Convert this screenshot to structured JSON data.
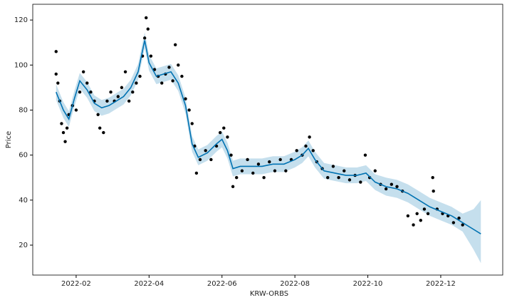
{
  "chart_data": {
    "type": "forecast",
    "xlabel": "KRW-ORBS",
    "ylabel": "Price",
    "grid": true,
    "xlim": [
      0.81,
      13.7
    ],
    "xticks": [
      {
        "value": 2,
        "label": "2022-02"
      },
      {
        "value": 4,
        "label": "2022-04"
      },
      {
        "value": 6,
        "label": "2022-06"
      },
      {
        "value": 8,
        "label": "2022-08"
      },
      {
        "value": 10,
        "label": "2022-10"
      },
      {
        "value": 12,
        "label": "2022-12"
      }
    ],
    "ylim": [
      6.7,
      127
    ],
    "yticks": [
      20,
      40,
      60,
      80,
      100,
      120
    ],
    "observations": {
      "color": "#000000",
      "x": [
        1.45,
        1.45,
        1.5,
        1.55,
        1.6,
        1.65,
        1.7,
        1.75,
        1.8,
        1.9,
        2.0,
        2.1,
        2.2,
        2.3,
        2.4,
        2.5,
        2.6,
        2.65,
        2.75,
        2.85,
        2.95,
        3.05,
        3.15,
        3.25,
        3.35,
        3.45,
        3.55,
        3.65,
        3.75,
        3.82,
        3.88,
        3.92,
        3.97,
        4.05,
        4.15,
        4.25,
        4.35,
        4.45,
        4.55,
        4.65,
        4.72,
        4.8,
        4.9,
        5.0,
        5.1,
        5.18,
        5.25,
        5.3,
        5.4,
        5.55,
        5.7,
        5.85,
        5.95,
        6.05,
        6.15,
        6.25,
        6.3,
        6.4,
        6.55,
        6.7,
        6.85,
        7.0,
        7.15,
        7.3,
        7.45,
        7.6,
        7.75,
        7.9,
        8.05,
        8.2,
        8.3,
        8.4,
        8.5,
        8.6,
        8.75,
        8.9,
        9.05,
        9.2,
        9.35,
        9.5,
        9.65,
        9.8,
        9.93,
        10.05,
        10.2,
        10.35,
        10.5,
        10.65,
        10.8,
        10.95,
        11.1,
        11.25,
        11.35,
        11.45,
        11.55,
        11.65,
        11.78,
        11.8,
        11.9,
        12.05,
        12.2,
        12.35,
        12.5,
        12.6
      ],
      "y": [
        106,
        96,
        92,
        84,
        74,
        70,
        66,
        72,
        78,
        82,
        80,
        88,
        97,
        92,
        88,
        84,
        78,
        72,
        70,
        84,
        88,
        84,
        86,
        90,
        97,
        84,
        88,
        92,
        95,
        104,
        112,
        121,
        116,
        104,
        98,
        95,
        92,
        96,
        99,
        93,
        109,
        100,
        95,
        85,
        80,
        74,
        64,
        52,
        58,
        62,
        58,
        64,
        70,
        72,
        68,
        60,
        46,
        50,
        53,
        58,
        52,
        56,
        50,
        57,
        53,
        58,
        53,
        58,
        62,
        60,
        64,
        68,
        62,
        57,
        54,
        50,
        55,
        50,
        53,
        49,
        51,
        48,
        60,
        50,
        53,
        47,
        45,
        47,
        46,
        44,
        33,
        29,
        34,
        31,
        36,
        34,
        50,
        44,
        36,
        34,
        33,
        30,
        32,
        29
      ]
    },
    "forecast": {
      "color": "#0072b2",
      "band_color": "#9ecae1",
      "x": [
        1.45,
        1.65,
        1.8,
        1.95,
        2.1,
        2.3,
        2.5,
        2.7,
        2.9,
        3.1,
        3.3,
        3.5,
        3.7,
        3.88,
        4.0,
        4.2,
        4.4,
        4.6,
        4.8,
        5.0,
        5.18,
        5.35,
        5.6,
        5.85,
        6.0,
        6.15,
        6.3,
        6.5,
        6.8,
        7.1,
        7.4,
        7.7,
        8.0,
        8.2,
        8.37,
        8.55,
        8.8,
        9.1,
        9.4,
        9.7,
        9.95,
        10.2,
        10.5,
        10.8,
        11.1,
        11.4,
        11.7,
        12.0,
        12.3,
        12.6,
        12.9,
        13.1
      ],
      "values": [
        88,
        80,
        76,
        85,
        93,
        89,
        83,
        81,
        82,
        84,
        86,
        90,
        97,
        111,
        101,
        95,
        96,
        97,
        92,
        82,
        65,
        59,
        61,
        65,
        67,
        62,
        54,
        55,
        55,
        55,
        56,
        56,
        58,
        60,
        63,
        58,
        53,
        52,
        51,
        51,
        52,
        48,
        46,
        45,
        43,
        40,
        37,
        35,
        33,
        30,
        27,
        25
      ],
      "lower": [
        84.5,
        76.5,
        72.5,
        81.5,
        89.5,
        85.5,
        79.5,
        77.5,
        78.5,
        80.5,
        82.5,
        86.5,
        93.5,
        107.5,
        97.5,
        91.5,
        92.5,
        93.5,
        88.5,
        78.5,
        61.5,
        55.5,
        57.5,
        61.5,
        63.5,
        58.5,
        50.5,
        51.5,
        51.5,
        51.5,
        52.5,
        52.5,
        54.5,
        56.5,
        59.5,
        54.5,
        49.5,
        48.5,
        47.5,
        47.5,
        48.5,
        44.5,
        42,
        41,
        39,
        36,
        33,
        31,
        29,
        26,
        18,
        12
      ],
      "upper": [
        91.5,
        83.5,
        79.5,
        88.5,
        96.5,
        92.5,
        86.5,
        84.5,
        85.5,
        87.5,
        89.5,
        93.5,
        100.5,
        114.5,
        104.5,
        98.5,
        99.5,
        100.5,
        95.5,
        85.5,
        68.5,
        62.5,
        64.5,
        68.5,
        70.5,
        65.5,
        57.5,
        58.5,
        58.5,
        58.5,
        59.5,
        59.5,
        61.5,
        63.5,
        66.5,
        61.5,
        56.5,
        55.5,
        54.5,
        54.5,
        55.5,
        51.5,
        50,
        49,
        47,
        44,
        41,
        39,
        37,
        34,
        36,
        40
      ]
    }
  }
}
